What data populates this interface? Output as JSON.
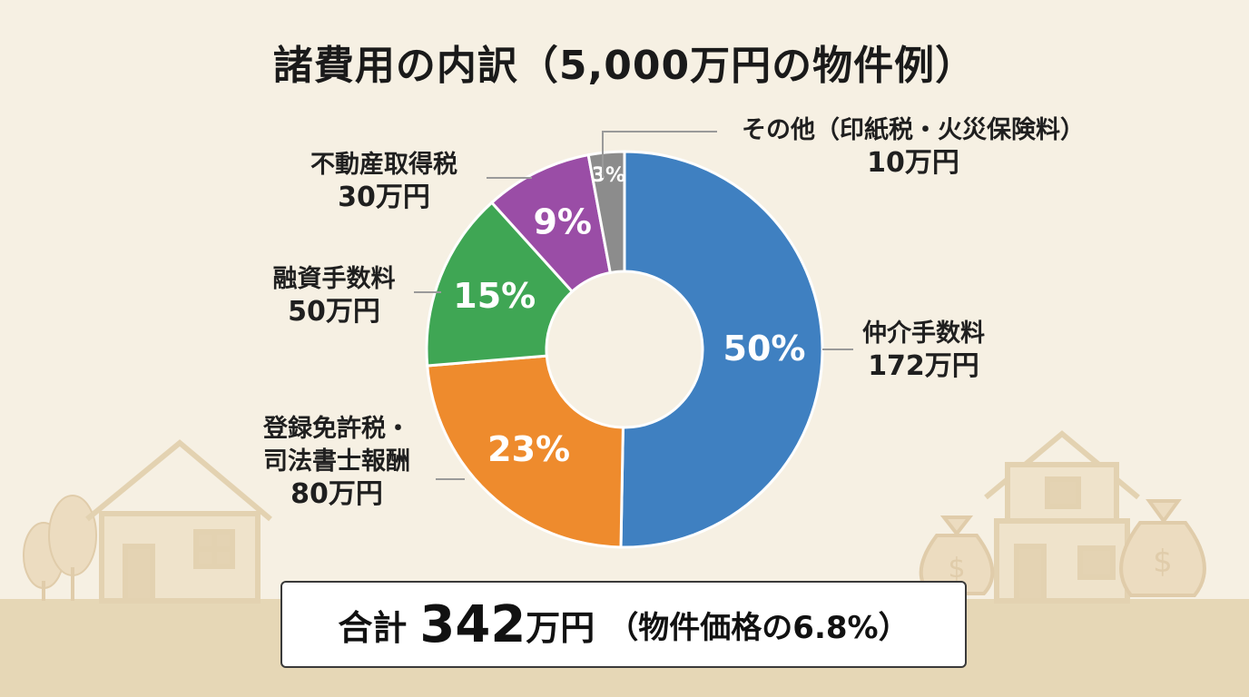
{
  "title": "諸費用の内訳（5,000万円の物件例）",
  "chart_data": {
    "type": "pie",
    "title": "諸費用の内訳（5,000万円の物件例）",
    "slices": [
      {
        "label": "仲介手数料",
        "amount": "172万円",
        "value": 172,
        "percent": "50%",
        "color": "#3f80c1"
      },
      {
        "label": "登録免許税・司法書士報酬",
        "amount": "80万円",
        "value": 80,
        "percent": "23%",
        "color": "#ee8b2d"
      },
      {
        "label": "融資手数料",
        "amount": "50万円",
        "value": 50,
        "percent": "15%",
        "color": "#3fa654"
      },
      {
        "label": "不動産取得税",
        "amount": "30万円",
        "value": 30,
        "percent": "9%",
        "color": "#9a4da6"
      },
      {
        "label": "その他（印紙税・火災保険料）",
        "amount": "10万円",
        "value": 10,
        "percent": "3%",
        "color": "#8c8c8c"
      }
    ]
  },
  "labels": {
    "chukai_name": "仲介手数料",
    "chukai_amount": "172万円",
    "toroku_line1": "登録免許税・",
    "toroku_line2": "司法書士報酬",
    "toroku_amount": "80万円",
    "yushi_name": "融資手数料",
    "yushi_amount": "50万円",
    "fudosan_name": "不動産取得税",
    "fudosan_amount": "30万円",
    "sonota_name": "その他（印紙税・火災保険料）",
    "sonota_amount": "10万円"
  },
  "total": {
    "label": "合計",
    "value": "342",
    "unit": "万円",
    "note": "（物件価格の6.8%）"
  },
  "icons": [
    "house-icon",
    "tree-icon",
    "money-bag-icon",
    "dollar-icon"
  ]
}
